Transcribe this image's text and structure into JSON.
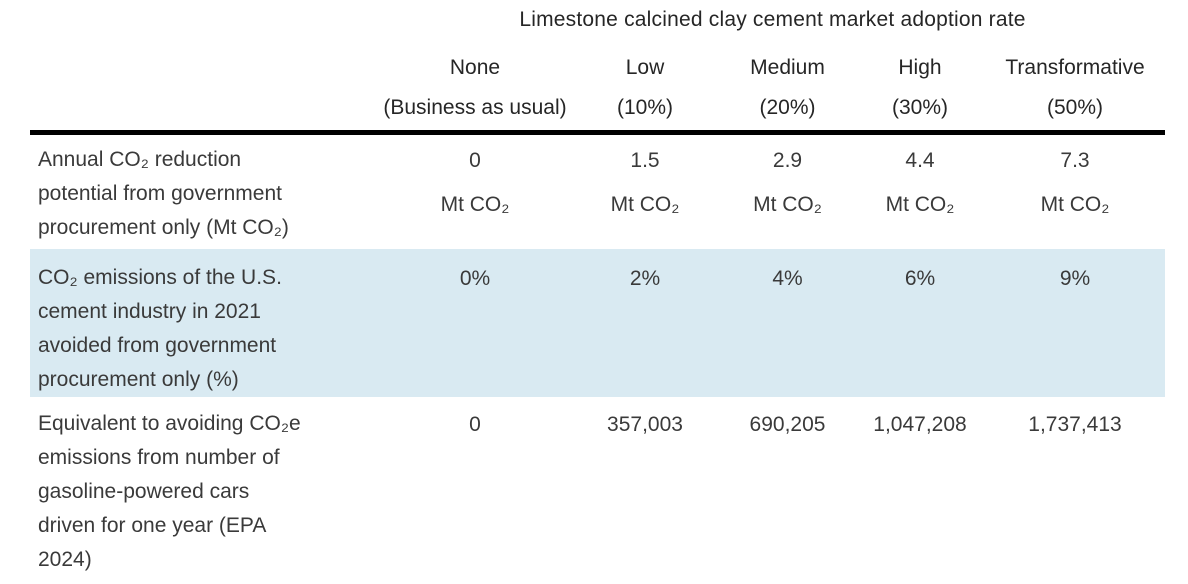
{
  "table": {
    "title": "Limestone calcined clay cement market adoption rate",
    "columns": [
      {
        "line1": "None",
        "line2": "(Business as usual)"
      },
      {
        "line1": "Low",
        "line2": "(10%)"
      },
      {
        "line1": "Medium",
        "line2": "(20%)"
      },
      {
        "line1": "High",
        "line2": "(30%)"
      },
      {
        "line1": "Transformative",
        "line2": "(50%)"
      }
    ],
    "rows": [
      {
        "label": "Annual CO₂ reduction\npotential from government\nprocurement only (Mt CO₂)",
        "unit": "Mt CO₂",
        "values": [
          "0",
          "1.5",
          "2.9",
          "4.4",
          "7.3"
        ]
      },
      {
        "label": "CO₂ emissions of the U.S.\ncement industry in 2021\navoided from government\nprocurement only (%)",
        "values": [
          "0%",
          "2%",
          "4%",
          "6%",
          "9%"
        ],
        "highlight": true
      },
      {
        "label": "Equivalent to avoiding CO₂e\nemissions from number of\ngasoline-powered cars\ndriven for one year (EPA\n2024)",
        "values": [
          "0",
          "357,003",
          "690,205",
          "1,047,208",
          "1,737,413"
        ]
      }
    ],
    "colors": {
      "highlight_row_background": "#d9eaf2",
      "rule": "#000000",
      "text": "#3a3a3a"
    }
  }
}
